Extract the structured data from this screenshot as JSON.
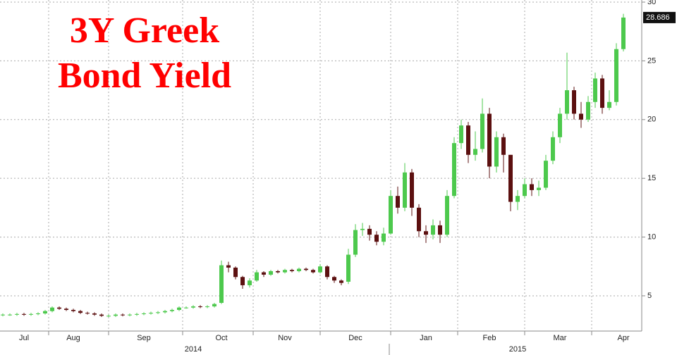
{
  "chart_data": {
    "type": "candlestick",
    "title": "3Y Greek Bond Yield",
    "categories": [
      null,
      null,
      null,
      "Jul",
      null,
      null,
      null,
      null,
      null,
      null,
      "Aug",
      null,
      null,
      null,
      null,
      null,
      null,
      null,
      null,
      null,
      "Sep",
      null,
      null,
      null,
      null,
      null,
      null,
      null,
      null,
      null,
      null,
      "Oct",
      null,
      null,
      null,
      null,
      null,
      null,
      null,
      null,
      "Nov",
      null,
      null,
      null,
      null,
      null,
      null,
      null,
      null,
      null,
      "Dec",
      null,
      null,
      null,
      null,
      null,
      null,
      null,
      null,
      null,
      "Jan",
      null,
      null,
      null,
      null,
      null,
      null,
      null,
      null,
      "Feb",
      null,
      null,
      null,
      null,
      null,
      null,
      null,
      null,
      null,
      "Mar",
      null,
      null,
      null,
      null,
      null,
      null,
      null,
      null,
      "Apr"
    ],
    "years": [
      null,
      null,
      null,
      null,
      null,
      null,
      null,
      null,
      null,
      null,
      null,
      null,
      null,
      null,
      null,
      null,
      null,
      null,
      null,
      null,
      null,
      null,
      null,
      null,
      null,
      null,
      null,
      "2014",
      null,
      null,
      null,
      null,
      null,
      null,
      null,
      null,
      null,
      null,
      null,
      null,
      null,
      null,
      null,
      null,
      null,
      null,
      null,
      null,
      null,
      null,
      null,
      null,
      null,
      null,
      null,
      null,
      null,
      null,
      null,
      null,
      null,
      null,
      null,
      null,
      null,
      null,
      null,
      null,
      null,
      null,
      null,
      null,
      null,
      "2015",
      null,
      null,
      null,
      null,
      null,
      null,
      null,
      null,
      null,
      null,
      null,
      null,
      null,
      null,
      null
    ],
    "open": [
      3.35,
      3.4,
      3.4,
      3.45,
      3.4,
      3.45,
      3.5,
      3.7,
      4.0,
      3.9,
      3.8,
      3.7,
      3.55,
      3.5,
      3.4,
      3.3,
      3.3,
      3.4,
      3.35,
      3.4,
      3.45,
      3.5,
      3.55,
      3.6,
      3.7,
      3.8,
      4.0,
      4.0,
      4.1,
      4.05,
      4.1,
      4.4,
      7.6,
      7.4,
      6.6,
      5.9,
      6.3,
      7.0,
      6.8,
      7.1,
      7.0,
      7.2,
      7.1,
      7.3,
      7.2,
      7.0,
      7.5,
      6.6,
      6.3,
      6.2,
      8.5,
      10.6,
      10.7,
      10.2,
      9.6,
      10.3,
      13.5,
      12.5,
      15.5,
      12.5,
      10.5,
      10.2,
      11.0,
      10.2,
      13.5,
      18.0,
      19.5,
      17.0,
      17.5,
      20.5,
      16.0,
      18.5,
      17.0,
      13.0,
      13.5,
      14.5,
      14.0,
      14.2,
      16.5,
      18.5,
      20.5,
      22.5,
      20.5,
      20.0,
      21.5,
      23.5,
      21.0,
      21.5,
      26.0
    ],
    "high": [
      3.5,
      3.5,
      3.55,
      3.55,
      3.55,
      3.6,
      3.8,
      4.1,
      4.1,
      4.0,
      3.9,
      3.8,
      3.65,
      3.6,
      3.5,
      3.4,
      3.5,
      3.5,
      3.5,
      3.55,
      3.6,
      3.65,
      3.7,
      3.8,
      3.9,
      4.1,
      4.1,
      4.2,
      4.2,
      4.2,
      4.4,
      8.0,
      7.9,
      7.5,
      6.7,
      6.5,
      7.2,
      7.1,
      7.2,
      7.2,
      7.3,
      7.3,
      7.4,
      7.4,
      7.3,
      7.7,
      7.6,
      6.7,
      6.4,
      9.0,
      11.1,
      11.2,
      11.0,
      10.5,
      10.8,
      14.0,
      14.3,
      16.3,
      15.8,
      12.8,
      11.0,
      11.5,
      11.4,
      14.0,
      18.5,
      20.0,
      19.8,
      19.0,
      21.8,
      21.0,
      19.0,
      18.8,
      17.0,
      14.0,
      15.0,
      15.0,
      14.8,
      17.0,
      19.0,
      21.0,
      25.7,
      22.8,
      21.5,
      22.0,
      24.0,
      23.8,
      22.5,
      26.5,
      29.0
    ],
    "low": [
      3.25,
      3.3,
      3.3,
      3.3,
      3.3,
      3.35,
      3.4,
      3.6,
      3.8,
      3.7,
      3.6,
      3.45,
      3.4,
      3.3,
      3.2,
      3.2,
      3.2,
      3.25,
      3.25,
      3.3,
      3.35,
      3.4,
      3.45,
      3.5,
      3.6,
      3.7,
      3.9,
      3.9,
      3.95,
      3.95,
      4.0,
      4.3,
      7.0,
      6.4,
      5.6,
      5.7,
      6.2,
      6.6,
      6.7,
      6.9,
      6.9,
      7.0,
      7.0,
      7.1,
      6.9,
      6.9,
      6.4,
      6.1,
      5.9,
      6.0,
      8.3,
      10.1,
      9.7,
      9.3,
      9.3,
      10.2,
      12.0,
      12.2,
      11.8,
      10.0,
      9.5,
      9.8,
      9.5,
      10.0,
      13.3,
      17.5,
      16.3,
      16.5,
      17.2,
      15.0,
      15.5,
      15.5,
      12.2,
      12.3,
      13.3,
      13.5,
      13.5,
      14.0,
      16.2,
      18.0,
      20.0,
      20.0,
      19.3,
      19.8,
      21.0,
      20.5,
      20.8,
      21.2,
      25.8
    ],
    "close": [
      3.4,
      3.4,
      3.45,
      3.4,
      3.45,
      3.5,
      3.7,
      4.0,
      3.9,
      3.8,
      3.7,
      3.55,
      3.5,
      3.4,
      3.3,
      3.3,
      3.4,
      3.35,
      3.4,
      3.45,
      3.5,
      3.55,
      3.6,
      3.7,
      3.8,
      4.0,
      4.0,
      4.1,
      4.05,
      4.1,
      4.3,
      7.6,
      7.4,
      6.6,
      5.9,
      6.3,
      7.0,
      6.8,
      7.1,
      7.0,
      7.2,
      7.1,
      7.3,
      7.2,
      7.0,
      7.5,
      6.6,
      6.3,
      6.1,
      8.5,
      10.6,
      10.7,
      10.2,
      9.6,
      10.3,
      13.5,
      12.5,
      15.5,
      12.5,
      10.5,
      10.2,
      11.0,
      10.2,
      13.5,
      18.0,
      19.5,
      17.0,
      17.5,
      20.5,
      16.0,
      18.5,
      17.0,
      13.0,
      13.5,
      14.5,
      14.0,
      14.2,
      16.5,
      18.5,
      20.5,
      22.5,
      20.5,
      20.0,
      21.5,
      23.5,
      21.0,
      21.5,
      26.0,
      28.686
    ],
    "up_color": "#4dc94d",
    "down_color": "#5c1010",
    "ylim": [
      2,
      30
    ],
    "yticks": [
      5,
      10,
      15,
      20,
      25,
      30
    ],
    "grid": true
  }
}
